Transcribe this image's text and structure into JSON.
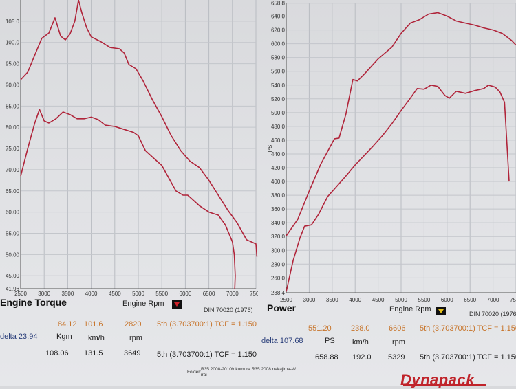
{
  "chart_data": [
    {
      "type": "line",
      "title": "Engine Torque",
      "xlabel": "Engine Rpm",
      "ylabel": "",
      "xlim": [
        2500,
        7500
      ],
      "ylim": [
        41.96,
        110
      ],
      "x_ticks": [
        "2500",
        "3000",
        "3500",
        "4000",
        "4500",
        "5000",
        "5500",
        "6000",
        "6500",
        "7000",
        "7500"
      ],
      "y_ticks": [
        "41.96",
        "45.00",
        "50.00",
        "55.00",
        "60.00",
        "65.00",
        "70.00",
        "75.00",
        "80.00",
        "85.00",
        "90.00",
        "95.00",
        "100.0",
        "105.0"
      ],
      "y_tick_values": [
        41.96,
        45,
        50,
        55,
        60,
        65,
        70,
        75,
        80,
        85,
        90,
        95,
        100,
        105
      ],
      "series": [
        {
          "values": [
            [
              2500,
              91.2
            ],
            [
              2650,
              93.0
            ],
            [
              2800,
              97.0
            ],
            [
              2950,
              101.0
            ],
            [
              3100,
              102.2
            ],
            [
              3230,
              105.8
            ],
            [
              3350,
              101.5
            ],
            [
              3450,
              100.6
            ],
            [
              3550,
              102.0
            ],
            [
              3650,
              105.0
            ],
            [
              3730,
              110.0
            ],
            [
              3800,
              107.0
            ],
            [
              3900,
              103.5
            ],
            [
              4000,
              101.3
            ],
            [
              4200,
              100.2
            ],
            [
              4400,
              98.8
            ],
            [
              4600,
              98.5
            ],
            [
              4700,
              97.5
            ],
            [
              4800,
              94.8
            ],
            [
              4950,
              93.8
            ],
            [
              5100,
              91.0
            ],
            [
              5300,
              86.5
            ],
            [
              5500,
              82.5
            ],
            [
              5700,
              78.0
            ],
            [
              5900,
              74.5
            ],
            [
              6100,
              72.0
            ],
            [
              6300,
              70.5
            ],
            [
              6500,
              67.5
            ],
            [
              6700,
              64.0
            ],
            [
              6900,
              60.5
            ],
            [
              7100,
              57.5
            ],
            [
              7300,
              53.5
            ],
            [
              7500,
              52.5
            ],
            [
              7520,
              49.5
            ]
          ]
        },
        {
          "values": [
            [
              2500,
              68.5
            ],
            [
              2650,
              75.0
            ],
            [
              2800,
              81.0
            ],
            [
              2900,
              84.2
            ],
            [
              3000,
              81.5
            ],
            [
              3100,
              81.0
            ],
            [
              3250,
              82.0
            ],
            [
              3400,
              83.6
            ],
            [
              3550,
              83.0
            ],
            [
              3700,
              82.0
            ],
            [
              3850,
              82.0
            ],
            [
              4000,
              82.4
            ],
            [
              4150,
              81.8
            ],
            [
              4300,
              80.5
            ],
            [
              4500,
              80.2
            ],
            [
              4700,
              79.5
            ],
            [
              4900,
              78.8
            ],
            [
              5000,
              78.0
            ],
            [
              5150,
              74.5
            ],
            [
              5350,
              72.5
            ],
            [
              5500,
              71.0
            ],
            [
              5650,
              68.0
            ],
            [
              5800,
              65.0
            ],
            [
              5950,
              64.0
            ],
            [
              6050,
              64.0
            ],
            [
              6150,
              63.0
            ],
            [
              6300,
              61.5
            ],
            [
              6500,
              60.0
            ],
            [
              6700,
              59.3
            ],
            [
              6850,
              57.0
            ],
            [
              7000,
              53.0
            ],
            [
              7040,
              50.0
            ],
            [
              7060,
              45.0
            ],
            [
              7050,
              41.96
            ]
          ]
        }
      ]
    },
    {
      "type": "line",
      "title": "Power",
      "xlabel": "Engine Rpm",
      "ylabel": "PS",
      "xlim": [
        2500,
        7500
      ],
      "ylim": [
        238.4,
        659.5
      ],
      "x_ticks": [
        "2500",
        "3000",
        "3500",
        "4000",
        "4500",
        "5000",
        "5500",
        "6000",
        "6500",
        "7000",
        "7500"
      ],
      "y_ticks": [
        "238.4",
        "260.0",
        "280.0",
        "300.0",
        "320.0",
        "340.0",
        "360.0",
        "380.0",
        "400.0",
        "420.0",
        "440.0",
        "460.0",
        "480.0",
        "500.0",
        "520.0",
        "540.0",
        "560.0",
        "580.0",
        "600.0",
        "620.0",
        "640.0",
        "658.8"
      ],
      "y_tick_values": [
        238.4,
        260,
        280,
        300,
        320,
        340,
        360,
        380,
        400,
        420,
        440,
        460,
        480,
        500,
        520,
        540,
        560,
        580,
        600,
        620,
        640,
        658.8
      ],
      "series": [
        {
          "values": [
            [
              2500,
              321
            ],
            [
              2750,
              345
            ],
            [
              3000,
              386
            ],
            [
              3250,
              425
            ],
            [
              3550,
              462
            ],
            [
              3650,
              463
            ],
            [
              3800,
              498
            ],
            [
              3950,
              548
            ],
            [
              4050,
              546
            ],
            [
              4200,
              556
            ],
            [
              4500,
              578
            ],
            [
              4800,
              595
            ],
            [
              5000,
              615
            ],
            [
              5200,
              630
            ],
            [
              5400,
              635
            ],
            [
              5600,
              643
            ],
            [
              5800,
              645
            ],
            [
              6000,
              640
            ],
            [
              6200,
              633
            ],
            [
              6400,
              630
            ],
            [
              6600,
              627
            ],
            [
              6800,
              623
            ],
            [
              7000,
              620
            ],
            [
              7200,
              615
            ],
            [
              7400,
              605
            ],
            [
              7500,
              598
            ]
          ]
        },
        {
          "values": [
            [
              2500,
              240
            ],
            [
              2650,
              285
            ],
            [
              2800,
              318
            ],
            [
              2900,
              335
            ],
            [
              3050,
              337
            ],
            [
              3200,
              352
            ],
            [
              3400,
              378
            ],
            [
              3600,
              393
            ],
            [
              3800,
              408
            ],
            [
              4000,
              424
            ],
            [
              4200,
              438
            ],
            [
              4400,
              452
            ],
            [
              4600,
              467
            ],
            [
              4800,
              484
            ],
            [
              5000,
              503
            ],
            [
              5200,
              521
            ],
            [
              5350,
              535
            ],
            [
              5500,
              534
            ],
            [
              5650,
              540
            ],
            [
              5800,
              538
            ],
            [
              5950,
              525
            ],
            [
              6050,
              521
            ],
            [
              6200,
              531
            ],
            [
              6400,
              528
            ],
            [
              6600,
              532
            ],
            [
              6800,
              535
            ],
            [
              6900,
              540
            ],
            [
              7050,
              537
            ],
            [
              7150,
              530
            ],
            [
              7250,
              515
            ],
            [
              7350,
              400
            ]
          ]
        }
      ]
    }
  ],
  "torque_panel": {
    "title": "Engine Torque",
    "xlabel": "Engine Rpm",
    "din": "DIN 70020 (1976)",
    "cursor1": {
      "torque": "84.12",
      "speed": "101.6",
      "rpm": "2820",
      "gear": "5th (3.703700:1) TCF = 1.150"
    },
    "delta": "delta 23.94",
    "units": {
      "torque": "Kgm",
      "speed": "km/h",
      "rpm": "rpm"
    },
    "cursor2": {
      "torque": "108.06",
      "speed": "131.5",
      "rpm": "3649",
      "gear": "5th (3.703700:1) TCF = 1.150"
    }
  },
  "power_panel": {
    "title": "Power",
    "xlabel": "Engine Rpm",
    "din": "DIN 70020 (1976",
    "cursor1": {
      "power": "551.20",
      "speed": "238.0",
      "rpm": "6606",
      "gear": "5th (3.703700:1) TCF = 1.150"
    },
    "delta": "delta 107.68",
    "units": {
      "power": "PS",
      "speed": "km/h",
      "rpm": "rpm"
    },
    "cursor2": {
      "power": "658.88",
      "speed": "192.0",
      "rpm": "5329",
      "gear": "5th (3.703700:1) TCF = 1.150"
    }
  },
  "folder": {
    "label": "Folder:",
    "path": "R35 2008-2010\\okumura R35 2008 nakajima-W",
    "path2": "irai"
  },
  "brand": "Dynapack",
  "colors": {
    "curve": "#b0243a",
    "marker_red": "#d0232a",
    "marker_yellow": "#e6c21a",
    "value_orange": "#c7742a",
    "delta_blue": "#2a3f7a"
  }
}
